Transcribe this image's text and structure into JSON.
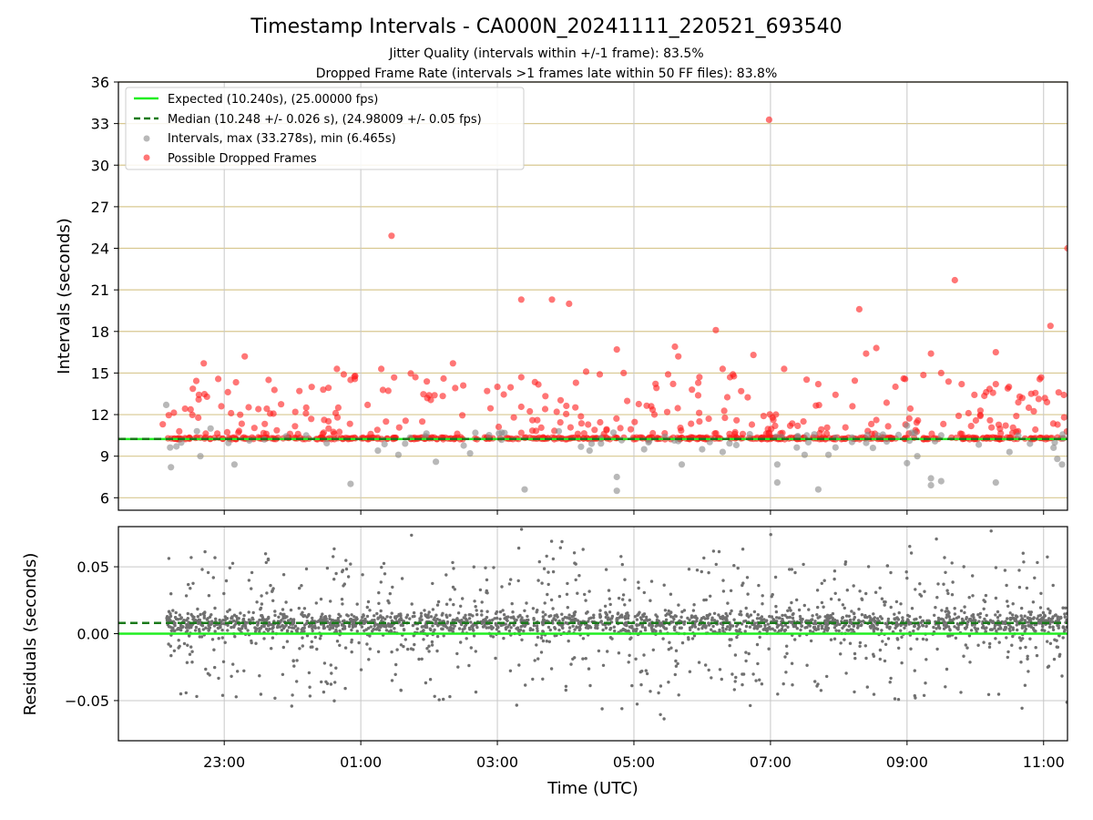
{
  "chart_data": {
    "title": "Timestamp Intervals - CA000N_20241111_220521_693540",
    "subtitle_lines": [
      "Jitter Quality (intervals within +/-1 frame): 83.5%",
      "Dropped Frame Rate (intervals >1 frames late within 50 FF files): 83.8%"
    ],
    "xlabel": "Time (UTC)",
    "x_range_hours": [
      -2.55,
      11.35
    ],
    "x_ticks": [
      {
        "h": -1,
        "label": "23:00"
      },
      {
        "h": 1,
        "label": "01:00"
      },
      {
        "h": 3,
        "label": "03:00"
      },
      {
        "h": 5,
        "label": "05:00"
      },
      {
        "h": 7,
        "label": "07:00"
      },
      {
        "h": 9,
        "label": "09:00"
      },
      {
        "h": 11,
        "label": "11:00"
      }
    ],
    "top": {
      "type": "scatter",
      "ylabel": "Intervals (seconds)",
      "ylim": [
        5.1,
        36
      ],
      "yticks": [
        "6",
        "9",
        "12",
        "15",
        "18",
        "21",
        "24",
        "27",
        "30",
        "33",
        "36"
      ],
      "expected": 10.24,
      "median": 10.248,
      "data_start_hour": -1.85,
      "legend": [
        "Expected (10.240s), (25.00000 fps)",
        "Median (10.248 +/- 0.026 s), (24.98009 +/- 0.05 fps)",
        "Intervals, max (33.278s), min (6.465s)",
        "Possible Dropped Frames"
      ],
      "gray_outliers": [
        [
          -1.85,
          12.7
        ],
        [
          -1.78,
          8.2
        ],
        [
          -1.7,
          9.7
        ],
        [
          -1.4,
          10.8
        ],
        [
          -1.35,
          9.0
        ],
        [
          -1.2,
          11.0
        ],
        [
          -0.85,
          8.4
        ],
        [
          0.2,
          10.5
        ],
        [
          0.85,
          7.0
        ],
        [
          1.25,
          9.4
        ],
        [
          1.55,
          9.1
        ],
        [
          2.1,
          8.6
        ],
        [
          2.6,
          9.2
        ],
        [
          3.4,
          6.6
        ],
        [
          4.35,
          9.4
        ],
        [
          4.75,
          7.5
        ],
        [
          4.75,
          6.5
        ],
        [
          4.7,
          10.7
        ],
        [
          5.15,
          9.5
        ],
        [
          5.7,
          8.4
        ],
        [
          6.0,
          9.5
        ],
        [
          6.3,
          9.3
        ],
        [
          6.5,
          9.8
        ],
        [
          7.1,
          8.4
        ],
        [
          7.1,
          7.1
        ],
        [
          7.5,
          9.1
        ],
        [
          7.7,
          6.6
        ],
        [
          7.85,
          9.1
        ],
        [
          8.5,
          9.6
        ],
        [
          9.0,
          8.5
        ],
        [
          9.15,
          9.0
        ],
        [
          9.35,
          7.4
        ],
        [
          9.35,
          6.9
        ],
        [
          9.5,
          7.2
        ],
        [
          9.5,
          10.5
        ],
        [
          10.3,
          7.1
        ],
        [
          10.5,
          9.3
        ],
        [
          10.8,
          9.9
        ],
        [
          11.2,
          8.8
        ],
        [
          11.27,
          8.4
        ],
        [
          9.0,
          11.2
        ],
        [
          3.9,
          10.8
        ]
      ],
      "red_outliers": [
        [
          -1.9,
          11.3
        ],
        [
          -1.3,
          15.7
        ],
        [
          -0.7,
          16.2
        ],
        [
          -0.35,
          14.5
        ],
        [
          0.1,
          13.7
        ],
        [
          0.2,
          12.5
        ],
        [
          0.45,
          13.8
        ],
        [
          0.65,
          15.3
        ],
        [
          0.75,
          14.9
        ],
        [
          0.85,
          14.5
        ],
        [
          1.1,
          12.7
        ],
        [
          1.3,
          15.3
        ],
        [
          1.45,
          24.9
        ],
        [
          1.8,
          14.7
        ],
        [
          2.0,
          13.4
        ],
        [
          2.35,
          15.7
        ],
        [
          2.5,
          14.1
        ],
        [
          2.85,
          13.7
        ],
        [
          3.0,
          14.0
        ],
        [
          3.35,
          14.7
        ],
        [
          3.35,
          20.3
        ],
        [
          3.8,
          20.3
        ],
        [
          4.05,
          20.0
        ],
        [
          4.15,
          14.3
        ],
        [
          4.3,
          15.1
        ],
        [
          4.5,
          14.9
        ],
        [
          4.75,
          16.7
        ],
        [
          4.85,
          15.0
        ],
        [
          5.5,
          14.9
        ],
        [
          5.6,
          16.9
        ],
        [
          5.65,
          16.2
        ],
        [
          5.85,
          13.8
        ],
        [
          6.2,
          18.1
        ],
        [
          6.3,
          15.3
        ],
        [
          6.45,
          14.9
        ],
        [
          6.75,
          16.3
        ],
        [
          6.98,
          33.278
        ],
        [
          7.2,
          15.3
        ],
        [
          7.7,
          14.2
        ],
        [
          8.3,
          19.6
        ],
        [
          8.4,
          16.4
        ],
        [
          8.55,
          16.8
        ],
        [
          8.95,
          14.6
        ],
        [
          9.35,
          16.4
        ],
        [
          9.5,
          15.0
        ],
        [
          9.7,
          21.7
        ],
        [
          9.8,
          14.2
        ],
        [
          10.3,
          16.5
        ],
        [
          10.3,
          14.2
        ],
        [
          10.65,
          13.3
        ],
        [
          11.05,
          12.9
        ],
        [
          11.1,
          18.4
        ],
        [
          11.22,
          13.6
        ],
        [
          11.35,
          24.0
        ],
        [
          11.3,
          11.8
        ],
        [
          -0.9,
          12.1
        ],
        [
          -0.5,
          12.4
        ],
        [
          1.9,
          11.5
        ],
        [
          3.7,
          12.4
        ],
        [
          5.3,
          12.0
        ],
        [
          6.9,
          11.9
        ],
        [
          8.2,
          12.6
        ],
        [
          9.9,
          12.1
        ],
        [
          10.6,
          11.9
        ]
      ],
      "red_band_density_per_hour": 34
    },
    "bottom": {
      "type": "scatter",
      "ylabel": "Residuals (seconds)",
      "ylim": [
        -0.08,
        0.08
      ],
      "yticks": [
        {
          "v": 0.05,
          "label": "0.05"
        },
        {
          "v": 0.0,
          "label": "0.00"
        },
        {
          "v": -0.05,
          "label": "−0.05"
        }
      ],
      "expected_residual": 0.0,
      "median_residual": 0.008,
      "points_per_hour": 190
    },
    "colors": {
      "expected": "#22ee22",
      "median": "#1a7a1a",
      "gray_point": "#888888",
      "red_point": "#ff1a1a",
      "residual_point": "#707070",
      "hgrid": "#d8c890",
      "vgrid": "#c8c8c8"
    }
  }
}
